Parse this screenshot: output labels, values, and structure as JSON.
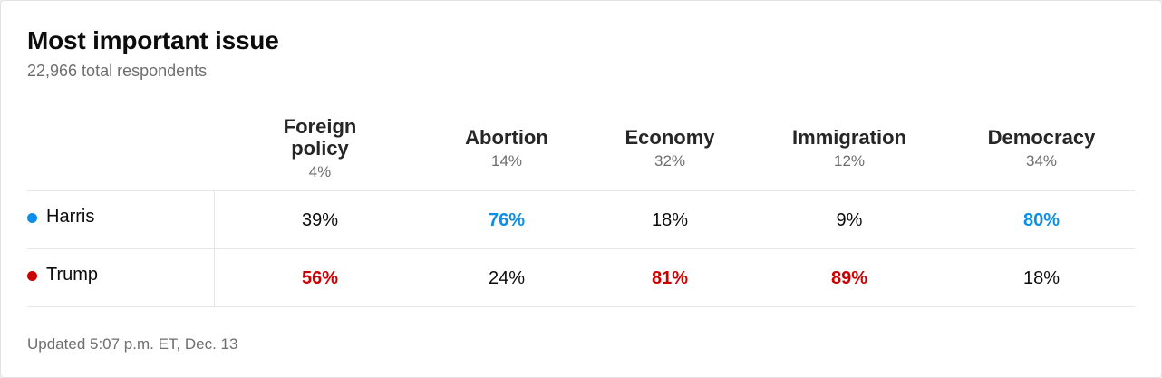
{
  "header": {
    "title": "Most important issue",
    "subtitle": "22,966 total respondents"
  },
  "footer": {
    "updated": "Updated 5:07 p.m. ET, Dec. 13"
  },
  "colors": {
    "harris": "#0b8ee8",
    "trump": "#cc0000"
  },
  "chart_data": {
    "type": "table",
    "title": "Most important issue",
    "subtitle": "22,966 total respondents",
    "categories": [
      {
        "name": "Foreign policy",
        "share": "4%"
      },
      {
        "name": "Abortion",
        "share": "14%"
      },
      {
        "name": "Economy",
        "share": "32%"
      },
      {
        "name": "Immigration",
        "share": "12%"
      },
      {
        "name": "Democracy",
        "share": "34%"
      }
    ],
    "series": [
      {
        "name": "Harris",
        "color": "#0b8ee8",
        "values": [
          "39%",
          "76%",
          "18%",
          "9%",
          "80%"
        ],
        "winner": [
          false,
          true,
          false,
          false,
          true
        ]
      },
      {
        "name": "Trump",
        "color": "#cc0000",
        "values": [
          "56%",
          "24%",
          "81%",
          "89%",
          "18%"
        ],
        "winner": [
          true,
          false,
          true,
          true,
          false
        ]
      }
    ]
  }
}
